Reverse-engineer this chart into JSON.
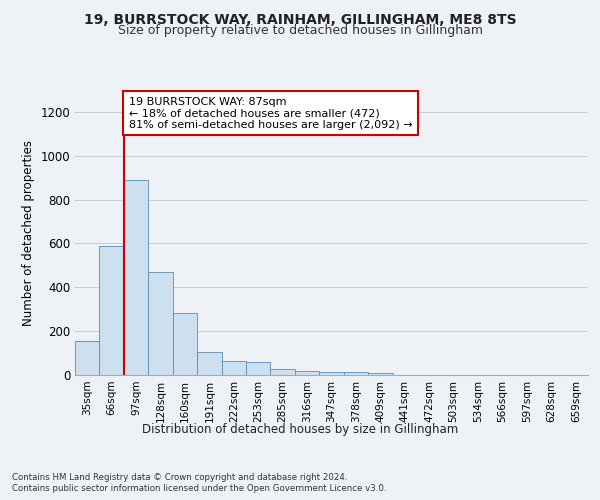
{
  "title1": "19, BURRSTOCK WAY, RAINHAM, GILLINGHAM, ME8 8TS",
  "title2": "Size of property relative to detached houses in Gillingham",
  "xlabel": "Distribution of detached houses by size in Gillingham",
  "ylabel": "Number of detached properties",
  "footnote1": "Contains HM Land Registry data © Crown copyright and database right 2024.",
  "footnote2": "Contains public sector information licensed under the Open Government Licence v3.0.",
  "annotation_line1": "19 BURRSTOCK WAY: 87sqm",
  "annotation_line2": "← 18% of detached houses are smaller (472)",
  "annotation_line3": "81% of semi-detached houses are larger (2,092) →",
  "bar_edge_color": "#5b8db8",
  "bar_fill_color": "#cce0f0",
  "vline_color": "#cc0000",
  "annotation_box_edge": "#cc0000",
  "annotation_box_fill": "#ffffff",
  "categories": [
    "35sqm",
    "66sqm",
    "97sqm",
    "128sqm",
    "160sqm",
    "191sqm",
    "222sqm",
    "253sqm",
    "285sqm",
    "316sqm",
    "347sqm",
    "378sqm",
    "409sqm",
    "441sqm",
    "472sqm",
    "503sqm",
    "534sqm",
    "566sqm",
    "597sqm",
    "628sqm",
    "659sqm"
  ],
  "values": [
    155,
    590,
    890,
    470,
    285,
    105,
    62,
    60,
    28,
    20,
    14,
    13,
    11,
    0,
    0,
    0,
    0,
    0,
    0,
    0,
    0
  ],
  "ylim": [
    0,
    1300
  ],
  "yticks": [
    0,
    200,
    400,
    600,
    800,
    1000,
    1200
  ],
  "vline_x_index": 1.5,
  "background_color": "#eef2f7",
  "plot_bg_color": "#eef2f7",
  "grid_color": "#cccccc"
}
